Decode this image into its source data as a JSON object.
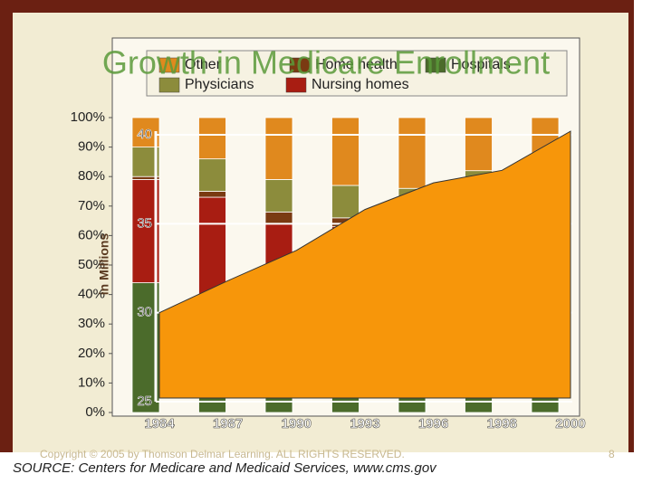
{
  "chart_data": [
    {
      "type": "stacked-bar",
      "categories": [
        null,
        null,
        null,
        null,
        null,
        null,
        null
      ],
      "series": [
        {
          "name": "Other",
          "color": "#e0891e",
          "values": [
            10,
            14,
            21,
            23,
            24,
            18,
            20
          ]
        },
        {
          "name": "Home health",
          "color": "#7a3a12",
          "values": [
            1,
            2,
            4,
            3,
            6,
            5,
            4
          ]
        },
        {
          "name": "Hospitals",
          "color": "#4b6b2b",
          "values": [
            44,
            40,
            38,
            36,
            34,
            33,
            32
          ]
        },
        {
          "name": "Physicians",
          "color": "#8c8c3c",
          "values": [
            10,
            11,
            11,
            11,
            12,
            21,
            22
          ]
        },
        {
          "name": "Nursing homes",
          "color": "#a81d12",
          "values": [
            35,
            33,
            26,
            27,
            24,
            23,
            22
          ]
        }
      ],
      "ylim": [
        0,
        100
      ],
      "yticks": [
        {
          "value": 0,
          "label": "0%"
        },
        {
          "value": 10,
          "label": "10%"
        },
        {
          "value": 20,
          "label": "20%"
        },
        {
          "value": 30,
          "label": "30%"
        },
        {
          "value": 40,
          "label": "40%"
        },
        {
          "value": 50,
          "label": "50%"
        },
        {
          "value": 60,
          "label": "60%"
        },
        {
          "value": 70,
          "label": "70%"
        },
        {
          "value": 80,
          "label": "80%"
        },
        {
          "value": 90,
          "label": "90%"
        },
        {
          "value": 100,
          "label": "100%"
        }
      ]
    },
    {
      "type": "area",
      "title": "Growth in Medicare Enrollment",
      "y_label": "in Millions",
      "categories": [
        "1984",
        "1987",
        "1990",
        "1993",
        "1996",
        "1998",
        "2000"
      ],
      "values": [
        30.0,
        31.8,
        33.5,
        35.8,
        37.3,
        38.0,
        40.2
      ],
      "color": "#f7960a",
      "ylim": [
        25,
        40
      ],
      "yticks": [
        25,
        30,
        35,
        40
      ],
      "grid": true
    }
  ],
  "source": "SOURCE: Centers for Medicare and Medicaid Services, www.cms.gov",
  "copyright": "Copyright © 2005 by Thomson Delmar Learning. ALL RIGHTS RESERVED.",
  "page_number": "8"
}
